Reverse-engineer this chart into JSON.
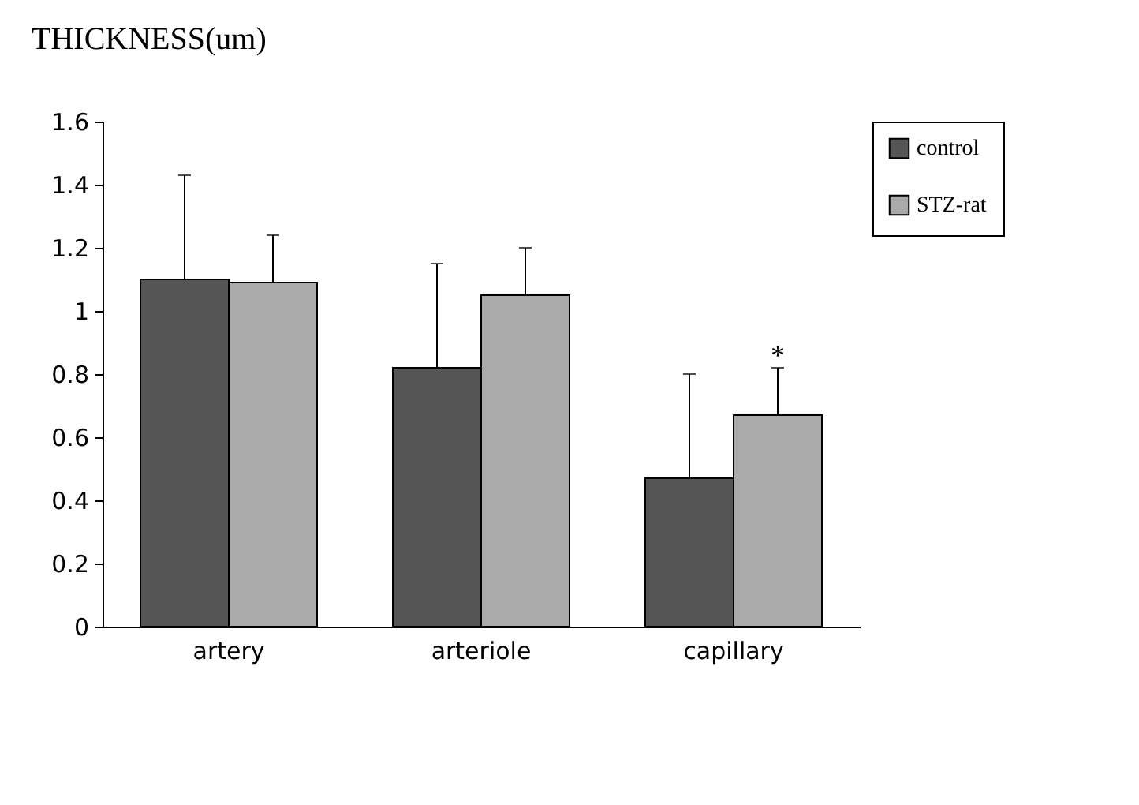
{
  "chart_data": {
    "type": "bar",
    "title": "THICKNESS(um)",
    "categories": [
      "artery",
      "arteriole",
      "capillary"
    ],
    "series": [
      {
        "name": "control",
        "color": "#555555",
        "values": [
          1.1,
          0.82,
          0.47
        ],
        "errors": [
          [
            1.1,
            1.43
          ],
          [
            0.82,
            1.15
          ],
          [
            0.47,
            0.8
          ]
        ]
      },
      {
        "name": "STZ-rat",
        "color": "#aaaaaa",
        "values": [
          1.09,
          1.05,
          0.67
        ],
        "errors": [
          [
            1.09,
            1.24
          ],
          [
            1.05,
            1.2
          ],
          [
            0.67,
            0.82
          ]
        ]
      }
    ],
    "ylim": [
      0,
      1.6
    ],
    "yticks": [
      0,
      0.2,
      0.4,
      0.6,
      0.8,
      1,
      1.2,
      1.4,
      1.6
    ],
    "grid": false,
    "legend": "right",
    "annotations": [
      "*"
    ]
  }
}
